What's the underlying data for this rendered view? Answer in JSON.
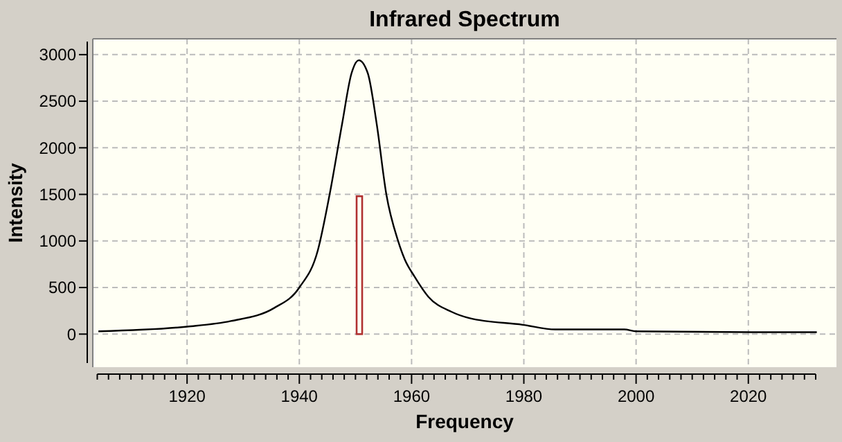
{
  "chart_data": {
    "type": "line",
    "title": "Infrared Spectrum",
    "xlabel": "Frequency",
    "ylabel": "Intensity",
    "xlim": [
      1903.2,
      2035.7
    ],
    "ylim": [
      -355,
      3170
    ],
    "xticks": [
      {
        "value": 1904,
        "label": null
      },
      {
        "value": 1906,
        "label": null
      },
      {
        "value": 1908,
        "label": null
      },
      {
        "value": 1910,
        "label": null
      },
      {
        "value": 1912,
        "label": null
      },
      {
        "value": 1914,
        "label": null
      },
      {
        "value": 1916,
        "label": null
      },
      {
        "value": 1918,
        "label": null
      },
      1920,
      {
        "value": 1922,
        "label": null
      },
      {
        "value": 1924,
        "label": null
      },
      {
        "value": 1926,
        "label": null
      },
      {
        "value": 1928,
        "label": null
      },
      {
        "value": 1930,
        "label": null
      },
      {
        "value": 1932,
        "label": null
      },
      {
        "value": 1934,
        "label": null
      },
      {
        "value": 1936,
        "label": null
      },
      {
        "value": 1938,
        "label": null
      },
      1940,
      {
        "value": 1942,
        "label": null
      },
      {
        "value": 1944,
        "label": null
      },
      {
        "value": 1946,
        "label": null
      },
      {
        "value": 1948,
        "label": null
      },
      {
        "value": 1950,
        "label": null
      },
      {
        "value": 1952,
        "label": null
      },
      {
        "value": 1954,
        "label": null
      },
      {
        "value": 1956,
        "label": null
      },
      {
        "value": 1958,
        "label": null
      },
      1960,
      {
        "value": 1962,
        "label": null
      },
      {
        "value": 1964,
        "label": null
      },
      {
        "value": 1966,
        "label": null
      },
      {
        "value": 1968,
        "label": null
      },
      {
        "value": 1970,
        "label": null
      },
      {
        "value": 1972,
        "label": null
      },
      {
        "value": 1974,
        "label": null
      },
      {
        "value": 1976,
        "label": null
      },
      {
        "value": 1978,
        "label": null
      },
      1980,
      {
        "value": 1982,
        "label": null
      },
      {
        "value": 1984,
        "label": null
      },
      {
        "value": 1986,
        "label": null
      },
      {
        "value": 1988,
        "label": null
      },
      {
        "value": 1990,
        "label": null
      },
      {
        "value": 1992,
        "label": null
      },
      {
        "value": 1994,
        "label": null
      },
      {
        "value": 1996,
        "label": null
      },
      {
        "value": 1998,
        "label": null
      },
      2000,
      {
        "value": 2002,
        "label": null
      },
      {
        "value": 2004,
        "label": null
      },
      {
        "value": 2006,
        "label": null
      },
      {
        "value": 2008,
        "label": null
      },
      {
        "value": 2010,
        "label": null
      },
      {
        "value": 2012,
        "label": null
      },
      {
        "value": 2014,
        "label": null
      },
      {
        "value": 2016,
        "label": null
      },
      {
        "value": 2018,
        "label": null
      },
      2020,
      {
        "value": 2022,
        "label": null
      },
      {
        "value": 2024,
        "label": null
      },
      {
        "value": 2026,
        "label": null
      },
      {
        "value": 2028,
        "label": null
      },
      {
        "value": 2030,
        "label": null
      },
      {
        "value": 2032,
        "label": null
      }
    ],
    "yticks": [
      0,
      500,
      1000,
      1500,
      2000,
      2500,
      3000
    ],
    "grid": true,
    "marker": "none",
    "line_style": "solid",
    "series": [
      {
        "color": "#000000",
        "x": [
          1904.2,
          1920,
          1927.8,
          1935.5,
          1940,
          1943.3,
          1945.4,
          1947.6,
          1949.3,
          1950.6,
          1952.2,
          1953.8,
          1955.5,
          1957.6,
          1958.8,
          1960.5,
          1963,
          1967.1,
          1970.4,
          1979.8,
          1985.6,
          1997.9,
          2000,
          2020.6,
          2032.2
        ],
        "values": [
          30,
          80,
          140,
          280,
          500,
          900,
          1500,
          2250,
          2800,
          2940,
          2800,
          2250,
          1500,
          1000,
          800,
          620,
          400,
          240,
          170,
          100,
          50,
          50,
          30,
          20,
          20
        ]
      },
      {
        "type": "bar",
        "color": "#b03030",
        "x": [
          1950.7
        ],
        "values": [
          1480
        ]
      }
    ]
  }
}
